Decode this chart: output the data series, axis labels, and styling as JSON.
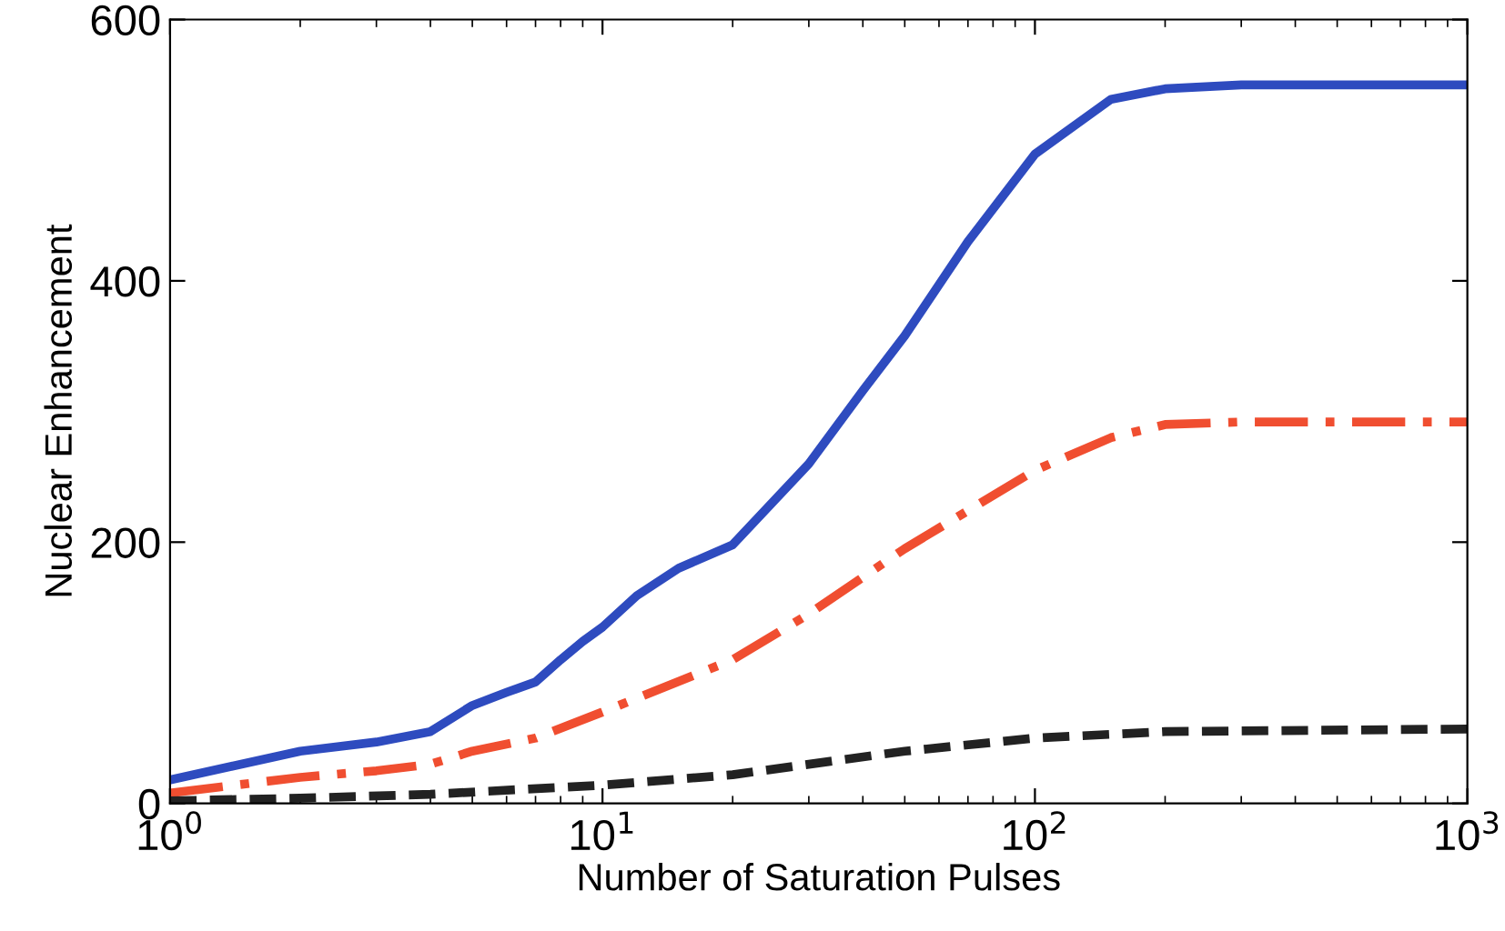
{
  "chart_data": {
    "type": "line",
    "xlabel": "Number of Saturation Pulses",
    "ylabel": "Nuclear Enhancement",
    "log": "x",
    "xlim": [
      1,
      1000
    ],
    "ylim": [
      0,
      600
    ],
    "xticks": [
      {
        "value": 1,
        "label": "10$^{0}$"
      },
      {
        "value": 10,
        "label": "10$^{1}$"
      },
      {
        "value": 100,
        "label": "10$^{2}$"
      },
      {
        "value": 1000,
        "label": "10$^{3}$"
      }
    ],
    "yticks": [
      0,
      200,
      400,
      600
    ],
    "grid": false,
    "series": [
      {
        "color": "#2e4bbf",
        "line_style": "solid",
        "x": [
          1,
          2,
          3,
          4,
          5,
          6,
          7,
          8,
          9,
          10,
          12,
          15,
          20,
          30,
          40,
          50,
          70,
          100,
          150,
          200,
          300,
          1000
        ],
        "values": [
          18,
          40,
          47,
          55,
          75,
          85,
          93,
          110,
          124,
          135,
          159,
          180,
          198,
          260,
          316,
          358,
          430,
          497,
          539,
          547,
          550,
          550
        ]
      },
      {
        "color": "#f04e30",
        "line_style": "dashdot",
        "x": [
          1,
          2,
          3,
          4,
          5,
          7,
          10,
          20,
          30,
          50,
          100,
          150,
          200,
          300,
          1000
        ],
        "values": [
          8,
          20,
          25,
          30,
          40,
          50,
          70,
          110,
          145,
          195,
          255,
          280,
          290,
          292,
          292
        ]
      },
      {
        "color": "#222222",
        "line_style": "dashed",
        "x": [
          1,
          2,
          4,
          10,
          20,
          50,
          100,
          200,
          1000
        ],
        "values": [
          2,
          4,
          7,
          14,
          22,
          40,
          50,
          55,
          57
        ]
      }
    ]
  }
}
